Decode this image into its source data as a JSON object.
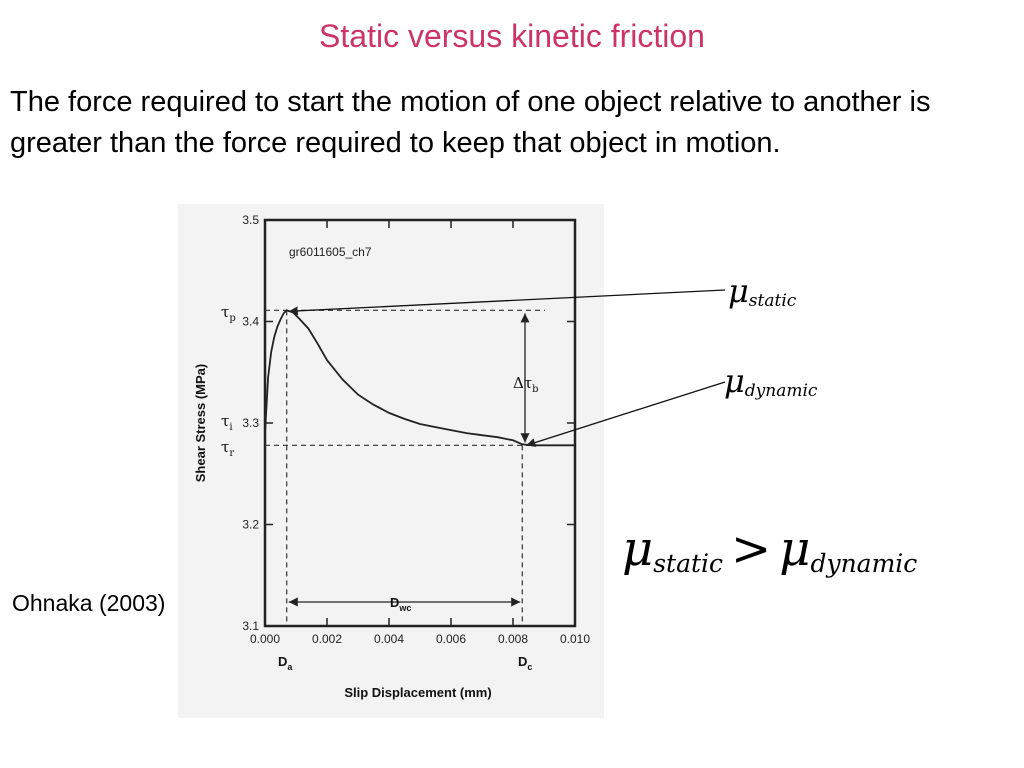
{
  "slide": {
    "title": "Static versus kinetic friction",
    "body": "The force required to start the motion of one object relative to another is greater than the force required to keep that object in motion.",
    "citation": "Ohnaka (2003)"
  },
  "labels": {
    "mu": "μ",
    "mu_static_sub": "static",
    "mu_dynamic_sub": "dynamic",
    "gt": ">",
    "tau": "τ",
    "sub_p": "p",
    "sub_i": "i",
    "sub_r": "r",
    "delta_tau": "Δτ",
    "sub_b": "b",
    "D": "D",
    "sub_a": "a",
    "sub_wc": "wc",
    "sub_c": "c"
  },
  "colors": {
    "title": "#cc3366",
    "curve": "#222222",
    "scan_background": "#f3f3f3"
  },
  "chart_data": {
    "type": "line",
    "title": "",
    "panel_label": "gr6011605_ch7",
    "xlabel": "Slip Displacement  (mm)",
    "ylabel": "Shear Stress  (MPa)",
    "xlim": [
      0,
      0.01
    ],
    "ylim": [
      3.1,
      3.5
    ],
    "xticks": [
      "0.000",
      "0.002",
      "0.004",
      "0.006",
      "0.008",
      "0.010"
    ],
    "yticks": [
      "3.1",
      "3.2",
      "3.3",
      "3.4",
      "3.5"
    ],
    "grid": false,
    "series": [
      {
        "x": [
          0,
          0.0001,
          0.0002,
          0.0003,
          0.0004,
          0.0005,
          0.0006,
          0.0007,
          0.0009,
          0.0011,
          0.0014,
          0.0017,
          0.002,
          0.0025,
          0.003,
          0.0035,
          0.004,
          0.0045,
          0.005,
          0.0055,
          0.006,
          0.0065,
          0.007,
          0.0075,
          0.008,
          0.0083,
          0.0086,
          0.009,
          0.0095,
          0.01
        ],
        "y": [
          3.29,
          3.345,
          3.37,
          3.385,
          3.395,
          3.402,
          3.408,
          3.411,
          3.409,
          3.403,
          3.393,
          3.378,
          3.362,
          3.343,
          3.328,
          3.318,
          3.31,
          3.304,
          3.299,
          3.296,
          3.293,
          3.29,
          3.288,
          3.286,
          3.283,
          3.279,
          3.278,
          3.278,
          3.278,
          3.278
        ]
      }
    ],
    "markers": {
      "tau_p": 3.411,
      "tau_r": 3.278,
      "D_a": 0.0007,
      "D_c": 0.0083
    }
  }
}
